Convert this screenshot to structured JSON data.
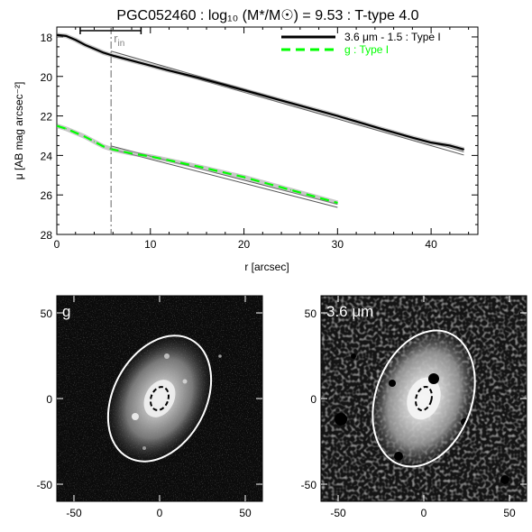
{
  "title": "PGC052460 : log₁₀ (M*/M☉) = 9.53 : T-type 4.0",
  "colors": {
    "line_primary": "#000000",
    "line_g": "#00ff00",
    "fit": "#555555",
    "band": "#9a9a9a",
    "rin_marker": "#808080",
    "ellipse_outer": "#ffffff",
    "ellipse_inner": "#000000"
  },
  "chart_data": [
    {
      "type": "line",
      "xlabel": "r [arcsec]",
      "ylabel": "μ [AB mag arcsec⁻²]",
      "xlim": [
        0,
        45
      ],
      "ylim": [
        28,
        17.5
      ],
      "y_inverted": true,
      "xticks": [
        0,
        10,
        20,
        30,
        40
      ],
      "yticks": [
        18,
        20,
        22,
        24,
        26,
        28
      ],
      "legend_position": "top-right",
      "r_in": {
        "label": "r",
        "subscript": "in",
        "value": 5.8,
        "bar_range": [
          2.5,
          9.0
        ]
      },
      "series": [
        {
          "name": "3.6 μm - 1.5 : Type I",
          "style": "solid",
          "x": [
            0,
            1,
            2,
            3,
            4,
            5,
            6,
            8,
            10,
            12,
            15,
            20,
            25,
            30,
            35,
            38,
            40,
            42,
            43.5
          ],
          "values": [
            17.9,
            17.95,
            18.15,
            18.4,
            18.6,
            18.8,
            18.95,
            19.2,
            19.45,
            19.7,
            20.05,
            20.7,
            21.35,
            22.0,
            22.7,
            23.1,
            23.35,
            23.5,
            23.7
          ]
        },
        {
          "name": "g : Type I",
          "style": "dashed",
          "x": [
            0,
            1,
            2,
            3,
            4,
            5,
            6,
            8,
            10,
            12,
            15,
            20,
            25,
            30
          ],
          "values": [
            22.5,
            22.65,
            22.85,
            23.05,
            23.3,
            23.55,
            23.7,
            23.9,
            24.05,
            24.25,
            24.55,
            25.1,
            25.75,
            26.4
          ]
        }
      ],
      "fits": [
        {
          "x": [
            5.8,
            43.5
          ],
          "values": [
            18.8,
            23.9
          ]
        },
        {
          "x": [
            5.8,
            30
          ],
          "values": [
            23.6,
            26.55
          ]
        }
      ]
    },
    {
      "type": "heatmap",
      "band_label": "g",
      "xlim": [
        -60,
        60
      ],
      "ylim": [
        -60,
        60
      ],
      "xticks": [
        -50,
        0,
        50
      ],
      "yticks": [
        50,
        0,
        -50
      ],
      "outer_ellipse": {
        "cx": 0,
        "cy": 0,
        "a": 27,
        "b": 39,
        "angle_deg": 28
      },
      "inner_ellipse": {
        "cx": 0,
        "cy": 0,
        "a": 5,
        "b": 7,
        "angle_deg": 20
      }
    },
    {
      "type": "heatmap",
      "band_label": "3.6 μm",
      "xlim": [
        -60,
        60
      ],
      "ylim": [
        -60,
        60
      ],
      "xticks": [
        -50,
        0,
        50
      ],
      "yticks": [
        50,
        0,
        -50
      ],
      "outer_ellipse": {
        "cx": 0,
        "cy": 0,
        "a": 28,
        "b": 41,
        "angle_deg": 20
      },
      "inner_ellipse": {
        "cx": 0,
        "cy": 0,
        "a": 4.5,
        "b": 7,
        "angle_deg": 15
      }
    }
  ]
}
